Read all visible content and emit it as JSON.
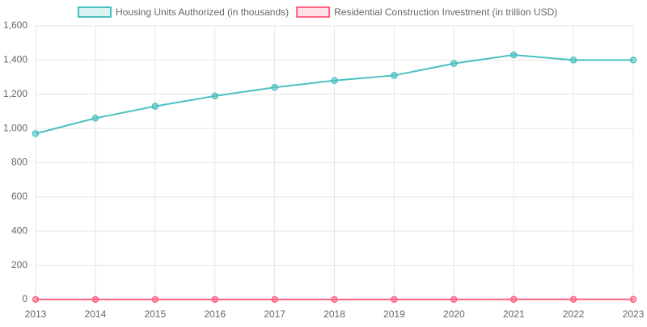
{
  "chart_data": {
    "type": "line",
    "categories": [
      "2013",
      "2014",
      "2015",
      "2016",
      "2017",
      "2018",
      "2019",
      "2020",
      "2021",
      "2022",
      "2023"
    ],
    "series": [
      {
        "name": "Housing Units Authorized (in thousands)",
        "color": "#4bc0c0",
        "values": [
          970,
          1060,
          1130,
          1190,
          1240,
          1280,
          1310,
          1380,
          1430,
          1400,
          1400
        ]
      },
      {
        "name": "Residential Construction Investment (in trillion USD)",
        "color": "#ff6384",
        "values": [
          0.5,
          0.55,
          0.6,
          0.65,
          0.7,
          0.75,
          0.75,
          0.8,
          0.9,
          0.95,
          0.9
        ]
      }
    ],
    "ylim": [
      0,
      1600
    ],
    "yticks": [
      0,
      200,
      400,
      600,
      800,
      {
        "value": 1000,
        "label": "1,000"
      },
      {
        "value": 1200,
        "label": "1,200"
      },
      {
        "value": 1400,
        "label": "1,400"
      },
      {
        "value": 1600,
        "label": "1,600"
      }
    ],
    "grid": true,
    "legend": "top"
  }
}
